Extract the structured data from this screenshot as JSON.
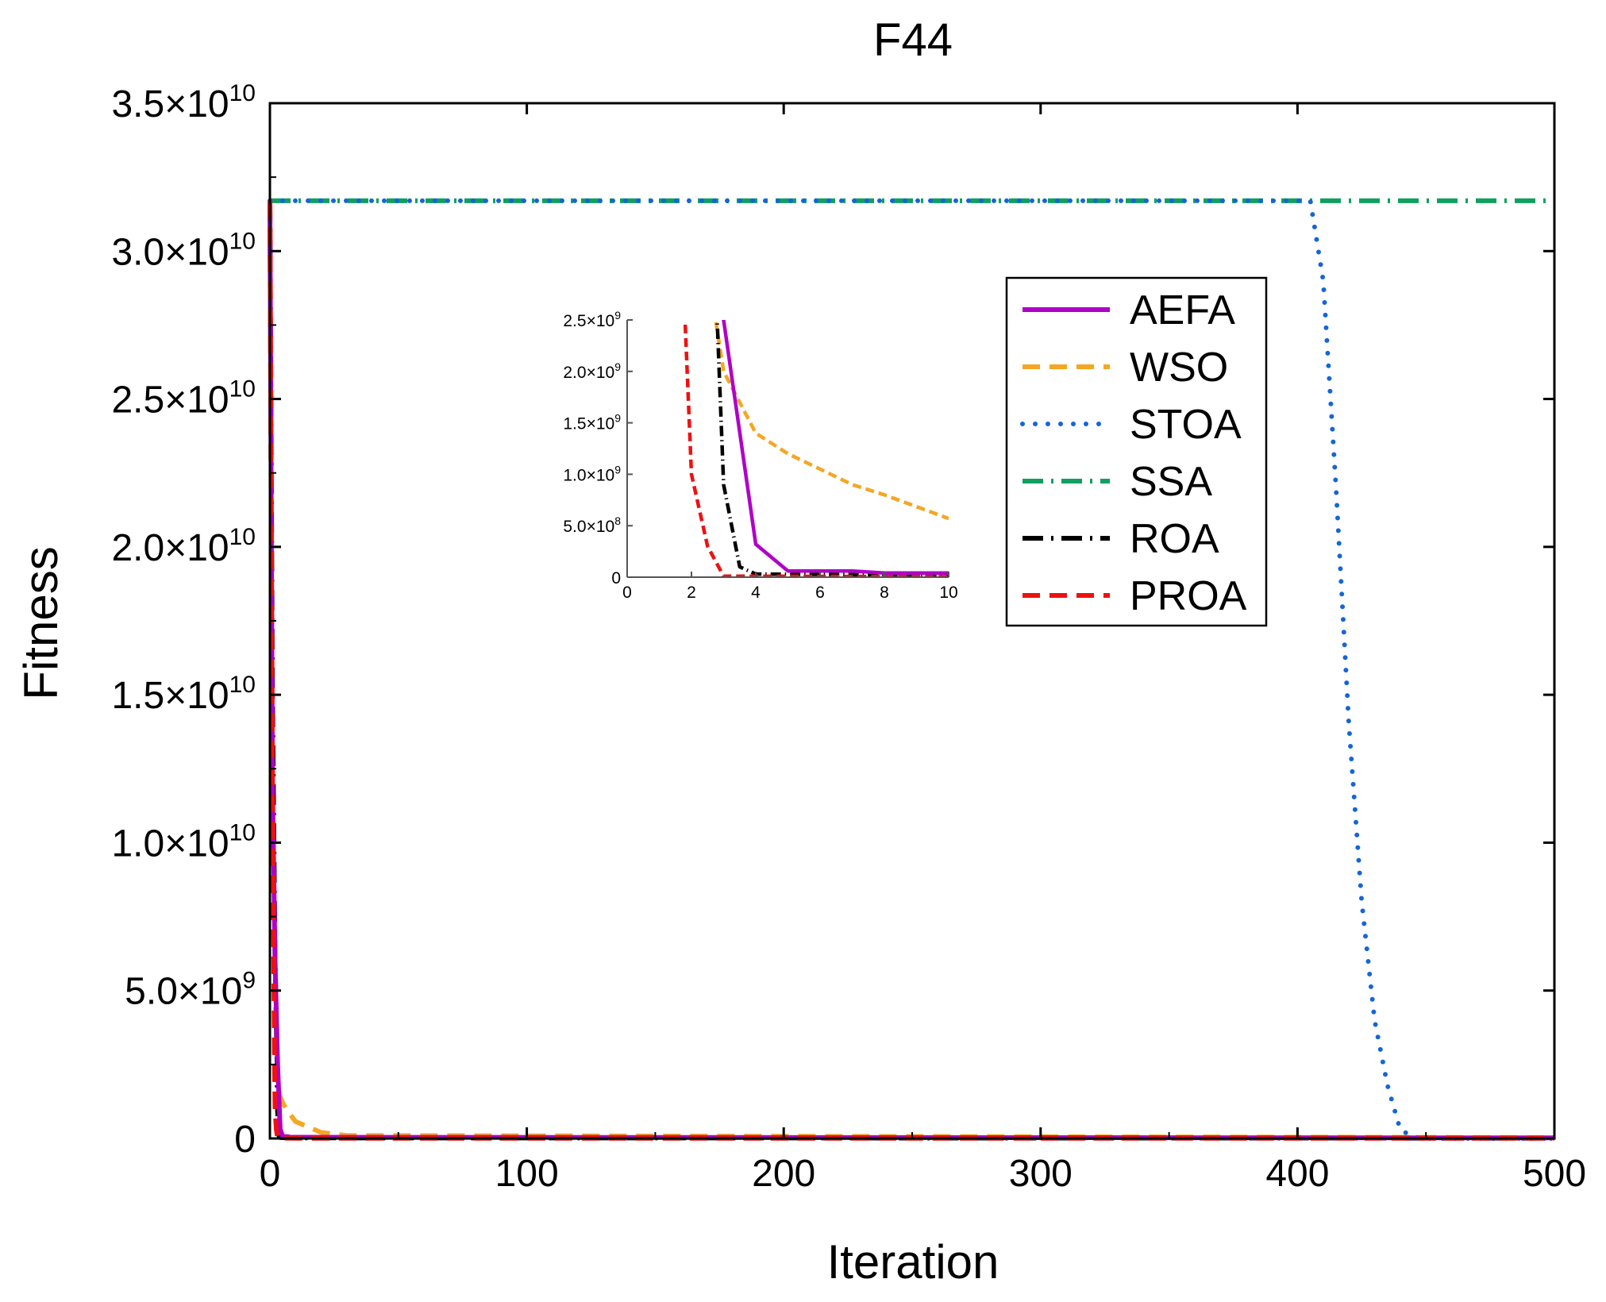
{
  "chart_data": {
    "type": "line",
    "title": "F44",
    "xlabel": "Iteration",
    "ylabel": "Fitness",
    "xlim": [
      0,
      500
    ],
    "ylim": [
      0,
      35000000000
    ],
    "x_ticks": [
      0,
      100,
      200,
      300,
      400,
      500
    ],
    "x_tick_labels": [
      "0",
      "100",
      "200",
      "300",
      "400",
      "500"
    ],
    "y_ticks": [
      {
        "value": 0,
        "mant": "0",
        "exp": ""
      },
      {
        "value": 5000000000,
        "mant": "5.0×10",
        "exp": "9"
      },
      {
        "value": 10000000000,
        "mant": "1.0×10",
        "exp": "10"
      },
      {
        "value": 15000000000,
        "mant": "1.5×10",
        "exp": "10"
      },
      {
        "value": 20000000000,
        "mant": "2.0×10",
        "exp": "10"
      },
      {
        "value": 25000000000,
        "mant": "2.5×10",
        "exp": "10"
      },
      {
        "value": 30000000000,
        "mant": "3.0×10",
        "exp": "10"
      },
      {
        "value": 35000000000,
        "mant": "3.5×10",
        "exp": "10"
      }
    ],
    "legend_position": "upper-right (inside plot)",
    "grid": false,
    "series": [
      {
        "name": "AEFA",
        "color": "#b000c8",
        "style": "solid",
        "x": [
          0,
          1,
          2,
          3,
          4,
          5,
          7,
          8,
          10,
          500
        ],
        "y": [
          31700000000,
          12000000000,
          6000000000,
          2500000000,
          320000000,
          60000000,
          60000000,
          40000000,
          40000000,
          20000000
        ]
      },
      {
        "name": "WSO",
        "color": "#f5a623",
        "style": "dashed",
        "x": [
          0,
          1,
          2,
          3,
          4,
          5,
          6,
          7,
          8,
          10,
          20,
          30,
          500
        ],
        "y": [
          31700000000,
          10000000000,
          4000000000,
          2000000000,
          1400000000,
          1200000000,
          1050000000,
          900000000,
          800000000,
          570000000,
          200000000,
          100000000,
          30000000
        ]
      },
      {
        "name": "STOA",
        "color": "#1565d8",
        "style": "dotted",
        "x": [
          0,
          405,
          410,
          415,
          420,
          425,
          430,
          435,
          440,
          445,
          450,
          500
        ],
        "y": [
          31700000000,
          31700000000,
          29000000000,
          22000000000,
          14000000000,
          8000000000,
          4000000000,
          1800000000,
          300000000,
          50000000,
          0,
          0
        ]
      },
      {
        "name": "SSA",
        "color": "#10a060",
        "style": "dash-dot",
        "x": [
          0,
          500
        ],
        "y": [
          31700000000,
          31700000000
        ]
      },
      {
        "name": "ROA",
        "color": "#000000",
        "style": "dash-dot",
        "x": [
          0,
          1,
          2,
          2.8,
          3,
          3.5,
          4,
          10,
          500
        ],
        "y": [
          31700000000,
          15000000000,
          6000000000,
          2500000000,
          900000000,
          100000000,
          30000000,
          20000000,
          10000000
        ]
      },
      {
        "name": "PROA",
        "color": "#ee1111",
        "style": "dashed",
        "x": [
          0,
          1,
          1.8,
          2,
          2.5,
          3,
          10,
          500
        ],
        "y": [
          31700000000,
          12000000000,
          2500000000,
          1000000000,
          300000000,
          10000000,
          5000000,
          5000000
        ]
      }
    ],
    "inset": {
      "xlim": [
        0,
        10
      ],
      "ylim": [
        0,
        2500000000
      ],
      "x_ticks": [
        0,
        2,
        4,
        6,
        8,
        10
      ],
      "x_tick_labels": [
        "0",
        "2",
        "4",
        "6",
        "8",
        "10"
      ],
      "y_ticks": [
        {
          "value": 0,
          "mant": "0",
          "exp": ""
        },
        {
          "value": 500000000,
          "mant": "5.0×10",
          "exp": "8"
        },
        {
          "value": 1000000000,
          "mant": "1.0×10",
          "exp": "9"
        },
        {
          "value": 1500000000,
          "mant": "1.5×10",
          "exp": "9"
        },
        {
          "value": 2000000000,
          "mant": "2.0×10",
          "exp": "9"
        },
        {
          "value": 2500000000,
          "mant": "2.5×10",
          "exp": "9"
        }
      ]
    }
  }
}
